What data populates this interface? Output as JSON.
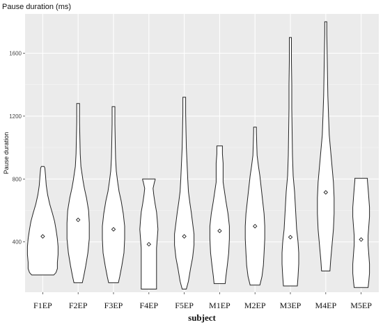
{
  "chart_data": {
    "type": "violin",
    "title": "Pause duration (ms)",
    "xlabel": "subject",
    "ylabel": "Pause duration",
    "ylim": [
      80,
      1850
    ],
    "yticks": [
      400,
      800,
      1200,
      1600
    ],
    "grid": true,
    "categories": [
      "F1EP",
      "F2EP",
      "F3EP",
      "F4EP",
      "F5EP",
      "M1EP",
      "M2EP",
      "M3EP",
      "M4EP",
      "M5EP"
    ],
    "series": [
      {
        "subject": "F1EP",
        "min": 190,
        "max": 880,
        "mean": 435,
        "density": [
          [
            190,
            16
          ],
          [
            205,
            19
          ],
          [
            230,
            21
          ],
          [
            270,
            21
          ],
          [
            320,
            22
          ],
          [
            370,
            22
          ],
          [
            420,
            21
          ],
          [
            480,
            19
          ],
          [
            530,
            17
          ],
          [
            580,
            14
          ],
          [
            640,
            10
          ],
          [
            700,
            7
          ],
          [
            760,
            5
          ],
          [
            820,
            4
          ],
          [
            870,
            3
          ],
          [
            880,
            2
          ]
        ]
      },
      {
        "subject": "F2EP",
        "min": 140,
        "max": 1280,
        "mean": 540,
        "density": [
          [
            140,
            6
          ],
          [
            180,
            8
          ],
          [
            250,
            11
          ],
          [
            330,
            14
          ],
          [
            420,
            16
          ],
          [
            520,
            16
          ],
          [
            600,
            15
          ],
          [
            680,
            12
          ],
          [
            740,
            9
          ],
          [
            790,
            7
          ],
          [
            880,
            4
          ],
          [
            960,
            3
          ],
          [
            1060,
            2.5
          ],
          [
            1160,
            2
          ],
          [
            1240,
            2
          ],
          [
            1280,
            2
          ]
        ]
      },
      {
        "subject": "F3EP",
        "min": 140,
        "max": 1260,
        "mean": 480,
        "density": [
          [
            140,
            7
          ],
          [
            180,
            9
          ],
          [
            250,
            12
          ],
          [
            330,
            15
          ],
          [
            420,
            16
          ],
          [
            500,
            16
          ],
          [
            580,
            14
          ],
          [
            660,
            11
          ],
          [
            720,
            8
          ],
          [
            780,
            6
          ],
          [
            850,
            4
          ],
          [
            930,
            3
          ],
          [
            1030,
            2.5
          ],
          [
            1150,
            2
          ],
          [
            1230,
            2
          ],
          [
            1260,
            2
          ]
        ]
      },
      {
        "subject": "F4EP",
        "min": 100,
        "max": 800,
        "mean": 385,
        "density": [
          [
            100,
            11
          ],
          [
            150,
            11
          ],
          [
            220,
            11
          ],
          [
            290,
            11
          ],
          [
            360,
            11
          ],
          [
            420,
            12
          ],
          [
            480,
            13
          ],
          [
            540,
            12
          ],
          [
            590,
            11
          ],
          [
            640,
            9
          ],
          [
            700,
            7
          ],
          [
            740,
            6
          ],
          [
            780,
            8
          ],
          [
            795,
            9
          ],
          [
            800,
            9
          ]
        ]
      },
      {
        "subject": "F5EP",
        "min": 100,
        "max": 1320,
        "mean": 435,
        "density": [
          [
            100,
            3
          ],
          [
            150,
            6
          ],
          [
            230,
            9
          ],
          [
            300,
            12
          ],
          [
            380,
            14
          ],
          [
            450,
            14
          ],
          [
            520,
            12
          ],
          [
            590,
            10
          ],
          [
            650,
            8
          ],
          [
            720,
            6
          ],
          [
            800,
            5
          ],
          [
            900,
            4
          ],
          [
            1000,
            3
          ],
          [
            1100,
            2.5
          ],
          [
            1220,
            2
          ],
          [
            1300,
            2
          ],
          [
            1320,
            2
          ]
        ]
      },
      {
        "subject": "M1EP",
        "min": 135,
        "max": 1010,
        "mean": 470,
        "density": [
          [
            135,
            8
          ],
          [
            180,
            9
          ],
          [
            250,
            11
          ],
          [
            330,
            13
          ],
          [
            420,
            14
          ],
          [
            500,
            14
          ],
          [
            580,
            12
          ],
          [
            660,
            9
          ],
          [
            720,
            7
          ],
          [
            780,
            5
          ],
          [
            840,
            5
          ],
          [
            900,
            5
          ],
          [
            960,
            4
          ],
          [
            1000,
            4
          ],
          [
            1010,
            4
          ]
        ]
      },
      {
        "subject": "M2EP",
        "min": 125,
        "max": 1130,
        "mean": 500,
        "density": [
          [
            125,
            7
          ],
          [
            180,
            10
          ],
          [
            250,
            12
          ],
          [
            330,
            13
          ],
          [
            420,
            14
          ],
          [
            500,
            14
          ],
          [
            580,
            13
          ],
          [
            660,
            11
          ],
          [
            740,
            9
          ],
          [
            820,
            7
          ],
          [
            880,
            5
          ],
          [
            950,
            3
          ],
          [
            1020,
            2.5
          ],
          [
            1100,
            2
          ],
          [
            1130,
            2
          ]
        ]
      },
      {
        "subject": "M3EP",
        "min": 120,
        "max": 1700,
        "mean": 430,
        "density": [
          [
            120,
            10
          ],
          [
            180,
            11
          ],
          [
            260,
            12
          ],
          [
            330,
            12
          ],
          [
            400,
            11
          ],
          [
            480,
            9
          ],
          [
            560,
            8
          ],
          [
            640,
            7
          ],
          [
            720,
            6
          ],
          [
            820,
            4
          ],
          [
            950,
            3
          ],
          [
            1100,
            2.5
          ],
          [
            1250,
            2
          ],
          [
            1400,
            2
          ],
          [
            1550,
            1.5
          ],
          [
            1690,
            1.5
          ],
          [
            1700,
            1.5
          ]
        ]
      },
      {
        "subject": "M4EP",
        "min": 215,
        "max": 1800,
        "mean": 715,
        "density": [
          [
            215,
            6
          ],
          [
            280,
            7
          ],
          [
            380,
            9
          ],
          [
            480,
            11
          ],
          [
            580,
            12
          ],
          [
            680,
            12
          ],
          [
            780,
            11
          ],
          [
            880,
            9
          ],
          [
            980,
            7
          ],
          [
            1080,
            5
          ],
          [
            1200,
            4
          ],
          [
            1330,
            3
          ],
          [
            1460,
            2.5
          ],
          [
            1600,
            2
          ],
          [
            1720,
            1.5
          ],
          [
            1790,
            1.5
          ],
          [
            1800,
            1.5
          ]
        ]
      },
      {
        "subject": "M5EP",
        "min": 110,
        "max": 805,
        "mean": 415,
        "density": [
          [
            110,
            10
          ],
          [
            150,
            11
          ],
          [
            200,
            12
          ],
          [
            260,
            12
          ],
          [
            320,
            11
          ],
          [
            380,
            10
          ],
          [
            440,
            10
          ],
          [
            500,
            11
          ],
          [
            560,
            12
          ],
          [
            620,
            12
          ],
          [
            680,
            11
          ],
          [
            740,
            10
          ],
          [
            790,
            9
          ],
          [
            805,
            9
          ]
        ]
      }
    ]
  }
}
